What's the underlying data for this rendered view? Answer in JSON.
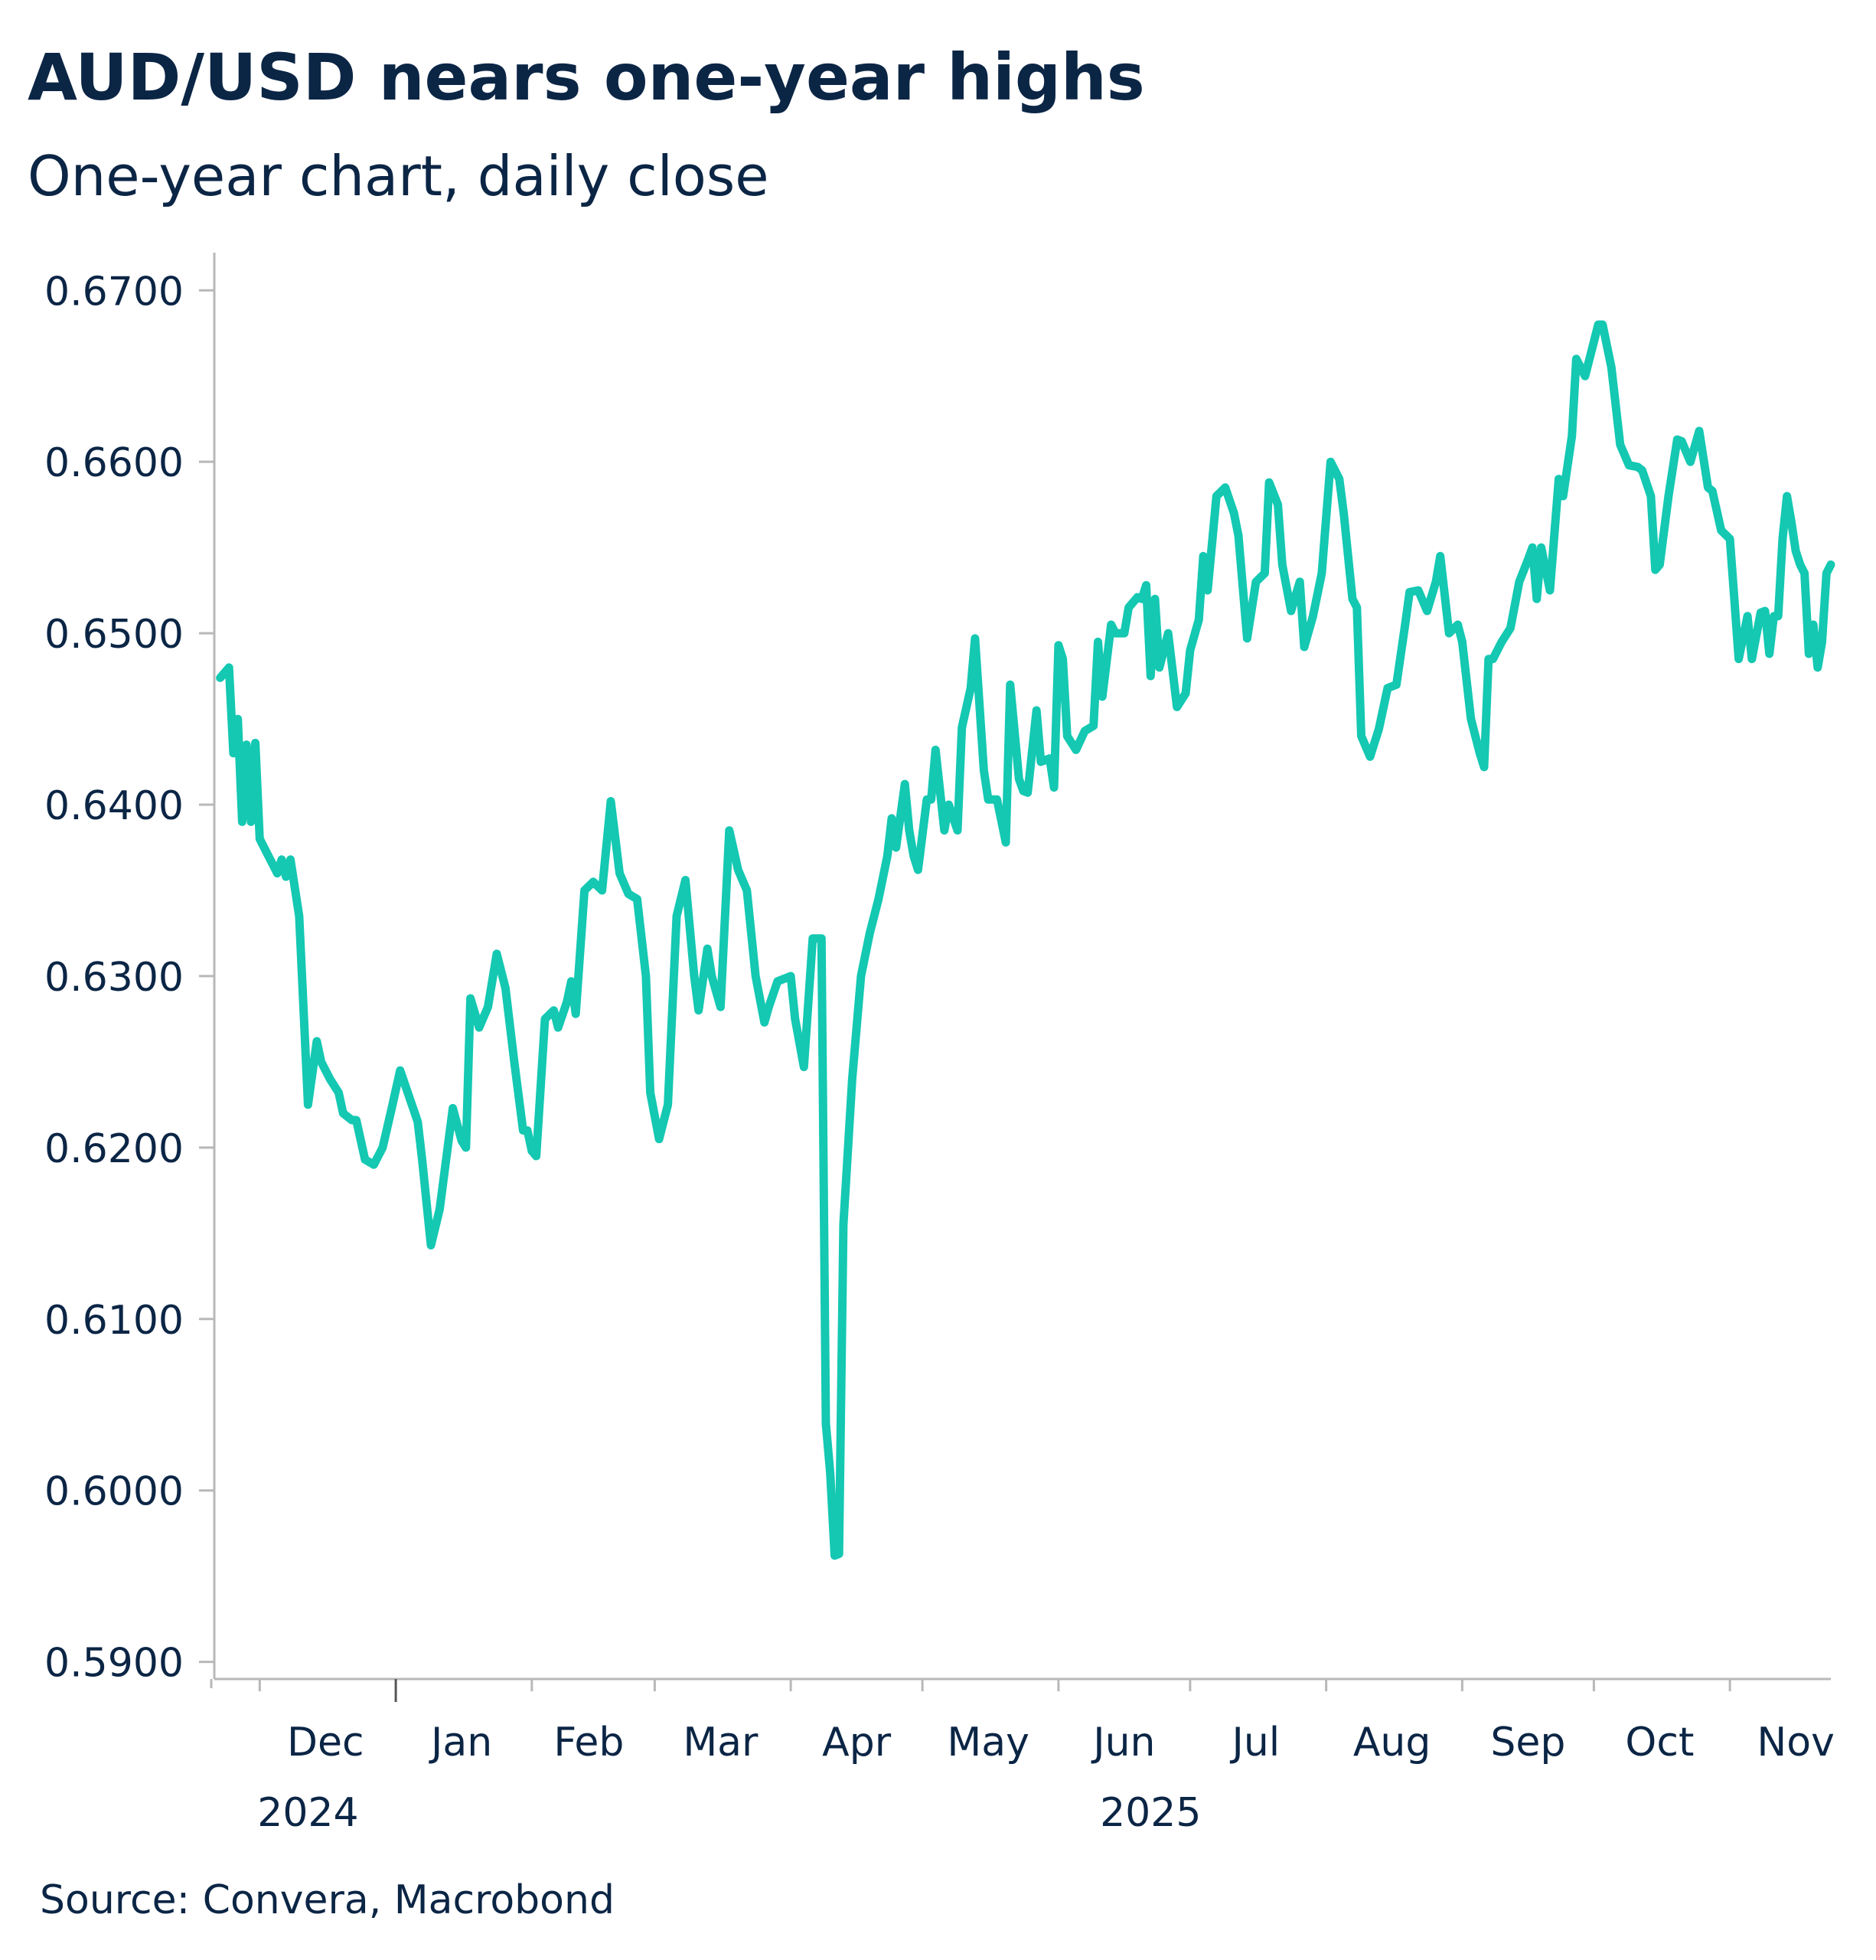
{
  "title": "AUD/USD nears one-year highs",
  "subtitle": "One-year chart, daily close",
  "source": "Source: Convera, Macrobond",
  "colors": {
    "line": "#14c8b2",
    "text": "#0b2545",
    "axis": "#b8b8b8"
  },
  "chart_data": {
    "type": "line",
    "title": "AUD/USD nears one-year highs",
    "subtitle": "One-year chart, daily close",
    "xlabel": "",
    "ylabel": "",
    "ylim": [
      0.589,
      0.6722
    ],
    "yticks": [
      "0.5900",
      "0.6000",
      "0.6100",
      "0.6200",
      "0.6300",
      "0.6400",
      "0.6500",
      "0.6600",
      "0.6700"
    ],
    "xlim": [
      "2024-11-21",
      "2025-11-24"
    ],
    "x_month_labels": [
      {
        "label": "Dec",
        "date": "2024-12-16"
      },
      {
        "label": "Jan",
        "date": "2025-01-16"
      },
      {
        "label": "Feb",
        "date": "2025-02-14"
      },
      {
        "label": "Mar",
        "date": "2025-03-16"
      },
      {
        "label": "Apr",
        "date": "2025-04-16"
      },
      {
        "label": "May",
        "date": "2025-05-16"
      },
      {
        "label": "Jun",
        "date": "2025-06-16"
      },
      {
        "label": "Jul",
        "date": "2025-07-16"
      },
      {
        "label": "Aug",
        "date": "2025-08-16"
      },
      {
        "label": "Sep",
        "date": "2025-09-16"
      },
      {
        "label": "Oct",
        "date": "2025-10-16"
      },
      {
        "label": "Nov",
        "date": "2025-11-16"
      }
    ],
    "x_month_ticks": [
      "2024-12-01",
      "2025-01-01",
      "2025-02-01",
      "2025-03-01",
      "2025-04-01",
      "2025-05-01",
      "2025-06-01",
      "2025-07-01",
      "2025-08-01",
      "2025-09-01",
      "2025-10-01",
      "2025-11-01"
    ],
    "x_year_labels": [
      {
        "label": "2024",
        "date": "2024-12-12"
      },
      {
        "label": "2025",
        "date": "2025-06-22"
      }
    ],
    "grid": false,
    "series": [
      {
        "values": [
          [
            "2024-11-22",
            0.6474
          ],
          [
            "2024-11-24",
            0.648
          ],
          [
            "2024-11-25",
            0.643
          ],
          [
            "2024-11-26",
            0.645
          ],
          [
            "2024-11-27",
            0.639
          ],
          [
            "2024-11-28",
            0.6435
          ],
          [
            "2024-11-29",
            0.639
          ],
          [
            "2024-11-30",
            0.6436
          ],
          [
            "2024-12-01",
            0.638
          ],
          [
            "2024-12-03",
            0.637
          ],
          [
            "2024-12-05",
            0.636
          ],
          [
            "2024-12-06",
            0.6368
          ],
          [
            "2024-12-07",
            0.6358
          ],
          [
            "2024-12-08",
            0.6368
          ],
          [
            "2024-12-10",
            0.6335
          ],
          [
            "2024-12-12",
            0.6225
          ],
          [
            "2024-12-14",
            0.6262
          ],
          [
            "2024-12-15",
            0.625
          ],
          [
            "2024-12-17",
            0.624
          ],
          [
            "2024-12-19",
            0.6232
          ],
          [
            "2024-12-20",
            0.622
          ],
          [
            "2024-12-22",
            0.6216
          ],
          [
            "2024-12-23",
            0.6216
          ],
          [
            "2024-12-25",
            0.6193
          ],
          [
            "2024-12-27",
            0.619
          ],
          [
            "2024-12-29",
            0.62
          ],
          [
            "2024-12-31",
            0.6222
          ],
          [
            "2025-01-02",
            0.6245
          ],
          [
            "2025-01-04",
            0.623
          ],
          [
            "2025-01-06",
            0.6215
          ],
          [
            "2025-01-07",
            0.6193
          ],
          [
            "2025-01-09",
            0.6143
          ],
          [
            "2025-01-11",
            0.6164
          ],
          [
            "2025-01-14",
            0.6223
          ],
          [
            "2025-01-16",
            0.6204
          ],
          [
            "2025-01-17",
            0.62
          ],
          [
            "2025-01-18",
            0.6287
          ],
          [
            "2025-01-20",
            0.627
          ],
          [
            "2025-01-22",
            0.6282
          ],
          [
            "2025-01-24",
            0.6313
          ],
          [
            "2025-01-26",
            0.6293
          ],
          [
            "2025-01-28",
            0.625
          ],
          [
            "2025-01-30",
            0.621
          ],
          [
            "2025-01-31",
            0.621
          ],
          [
            "2025-02-01",
            0.6198
          ],
          [
            "2025-02-02",
            0.6195
          ],
          [
            "2025-02-04",
            0.6275
          ],
          [
            "2025-02-06",
            0.628
          ],
          [
            "2025-02-07",
            0.627
          ],
          [
            "2025-02-09",
            0.6285
          ],
          [
            "2025-02-10",
            0.6297
          ],
          [
            "2025-02-11",
            0.6278
          ],
          [
            "2025-02-13",
            0.635
          ],
          [
            "2025-02-15",
            0.6355
          ],
          [
            "2025-02-17",
            0.635
          ],
          [
            "2025-02-19",
            0.6402
          ],
          [
            "2025-02-21",
            0.636
          ],
          [
            "2025-02-23",
            0.6348
          ],
          [
            "2025-02-25",
            0.6345
          ],
          [
            "2025-02-27",
            0.63
          ],
          [
            "2025-02-28",
            0.6232
          ],
          [
            "2025-03-02",
            0.6205
          ],
          [
            "2025-03-04",
            0.6225
          ],
          [
            "2025-03-06",
            0.6335
          ],
          [
            "2025-03-08",
            0.6356
          ],
          [
            "2025-03-10",
            0.63
          ],
          [
            "2025-03-11",
            0.628
          ],
          [
            "2025-03-13",
            0.6316
          ],
          [
            "2025-03-14",
            0.63
          ],
          [
            "2025-03-16",
            0.6282
          ],
          [
            "2025-03-18",
            0.6385
          ],
          [
            "2025-03-20",
            0.6362
          ],
          [
            "2025-03-22",
            0.635
          ],
          [
            "2025-03-24",
            0.63
          ],
          [
            "2025-03-26",
            0.6273
          ],
          [
            "2025-03-27",
            0.6282
          ],
          [
            "2025-03-29",
            0.6297
          ],
          [
            "2025-03-31",
            0.6299
          ],
          [
            "2025-04-01",
            0.63
          ],
          [
            "2025-04-02",
            0.6275
          ],
          [
            "2025-04-04",
            0.6247
          ],
          [
            "2025-04-06",
            0.6322
          ],
          [
            "2025-04-08",
            0.6322
          ],
          [
            "2025-04-09",
            0.6039
          ],
          [
            "2025-04-10",
            0.601
          ],
          [
            "2025-04-11",
            0.5962
          ],
          [
            "2025-04-12",
            0.5963
          ],
          [
            "2025-04-13",
            0.6155
          ],
          [
            "2025-04-15",
            0.624
          ],
          [
            "2025-04-17",
            0.63
          ],
          [
            "2025-04-19",
            0.6325
          ],
          [
            "2025-04-21",
            0.6345
          ],
          [
            "2025-04-23",
            0.637
          ],
          [
            "2025-04-24",
            0.6392
          ],
          [
            "2025-04-25",
            0.6375
          ],
          [
            "2025-04-27",
            0.6412
          ],
          [
            "2025-04-28",
            0.6385
          ],
          [
            "2025-04-29",
            0.637
          ],
          [
            "2025-04-30",
            0.6362
          ],
          [
            "2025-05-02",
            0.6403
          ],
          [
            "2025-05-03",
            0.6403
          ],
          [
            "2025-05-04",
            0.6432
          ],
          [
            "2025-05-06",
            0.6385
          ],
          [
            "2025-05-07",
            0.64
          ],
          [
            "2025-05-09",
            0.6385
          ],
          [
            "2025-05-10",
            0.6445
          ],
          [
            "2025-05-12",
            0.6468
          ],
          [
            "2025-05-13",
            0.6497
          ],
          [
            "2025-05-15",
            0.642
          ],
          [
            "2025-05-16",
            0.6403
          ],
          [
            "2025-05-18",
            0.6403
          ],
          [
            "2025-05-20",
            0.6378
          ],
          [
            "2025-05-21",
            0.647
          ],
          [
            "2025-05-23",
            0.6415
          ],
          [
            "2025-05-24",
            0.6408
          ],
          [
            "2025-05-25",
            0.6407
          ],
          [
            "2025-05-27",
            0.6455
          ],
          [
            "2025-05-28",
            0.6425
          ],
          [
            "2025-05-30",
            0.6427
          ],
          [
            "2025-05-31",
            0.641
          ],
          [
            "2025-06-01",
            0.6493
          ],
          [
            "2025-06-02",
            0.6485
          ],
          [
            "2025-06-03",
            0.644
          ],
          [
            "2025-06-05",
            0.6432
          ],
          [
            "2025-06-07",
            0.6443
          ],
          [
            "2025-06-09",
            0.6446
          ],
          [
            "2025-06-10",
            0.6495
          ],
          [
            "2025-06-11",
            0.6463
          ],
          [
            "2025-06-13",
            0.6505
          ],
          [
            "2025-06-14",
            0.65
          ],
          [
            "2025-06-16",
            0.65
          ],
          [
            "2025-06-17",
            0.6515
          ],
          [
            "2025-06-19",
            0.6521
          ],
          [
            "2025-06-20",
            0.652
          ],
          [
            "2025-06-21",
            0.6528
          ],
          [
            "2025-06-22",
            0.6475
          ],
          [
            "2025-06-23",
            0.652
          ],
          [
            "2025-06-24",
            0.648
          ],
          [
            "2025-06-26",
            0.65
          ],
          [
            "2025-06-28",
            0.6457
          ],
          [
            "2025-06-30",
            0.6465
          ],
          [
            "2025-07-01",
            0.649
          ],
          [
            "2025-07-03",
            0.6508
          ],
          [
            "2025-07-04",
            0.6545
          ],
          [
            "2025-07-05",
            0.6525
          ],
          [
            "2025-07-07",
            0.658
          ],
          [
            "2025-07-09",
            0.6585
          ],
          [
            "2025-07-11",
            0.657
          ],
          [
            "2025-07-12",
            0.6557
          ],
          [
            "2025-07-14",
            0.6497
          ],
          [
            "2025-07-16",
            0.653
          ],
          [
            "2025-07-18",
            0.6535
          ],
          [
            "2025-07-19",
            0.6588
          ],
          [
            "2025-07-21",
            0.6575
          ],
          [
            "2025-07-22",
            0.654
          ],
          [
            "2025-07-24",
            0.6513
          ],
          [
            "2025-07-26",
            0.653
          ],
          [
            "2025-07-27",
            0.6492
          ],
          [
            "2025-07-29",
            0.651
          ],
          [
            "2025-07-31",
            0.6535
          ],
          [
            "2025-08-02",
            0.66
          ],
          [
            "2025-08-04",
            0.659
          ],
          [
            "2025-08-05",
            0.657
          ],
          [
            "2025-08-07",
            0.652
          ],
          [
            "2025-08-08",
            0.6515
          ],
          [
            "2025-08-09",
            0.644
          ],
          [
            "2025-08-11",
            0.6428
          ],
          [
            "2025-08-13",
            0.6444
          ],
          [
            "2025-08-15",
            0.6468
          ],
          [
            "2025-08-17",
            0.647
          ],
          [
            "2025-08-19",
            0.6505
          ],
          [
            "2025-08-20",
            0.6524
          ],
          [
            "2025-08-22",
            0.6525
          ],
          [
            "2025-08-24",
            0.6513
          ],
          [
            "2025-08-26",
            0.653
          ],
          [
            "2025-08-27",
            0.6545
          ],
          [
            "2025-08-29",
            0.65
          ],
          [
            "2025-08-31",
            0.6505
          ],
          [
            "2025-09-01",
            0.6495
          ],
          [
            "2025-09-03",
            0.645
          ],
          [
            "2025-09-05",
            0.643
          ],
          [
            "2025-09-06",
            0.6422
          ],
          [
            "2025-09-07",
            0.6485
          ],
          [
            "2025-09-08",
            0.6485
          ],
          [
            "2025-09-10",
            0.6495
          ],
          [
            "2025-09-12",
            0.6503
          ],
          [
            "2025-09-14",
            0.653
          ],
          [
            "2025-09-16",
            0.6543
          ],
          [
            "2025-09-17",
            0.655
          ],
          [
            "2025-09-18",
            0.652
          ],
          [
            "2025-09-19",
            0.655
          ],
          [
            "2025-09-21",
            0.6525
          ],
          [
            "2025-09-23",
            0.659
          ],
          [
            "2025-09-24",
            0.658
          ],
          [
            "2025-09-26",
            0.6615
          ],
          [
            "2025-09-27",
            0.666
          ],
          [
            "2025-09-29",
            0.665
          ],
          [
            "2025-10-01",
            0.667
          ],
          [
            "2025-10-02",
            0.668
          ],
          [
            "2025-10-03",
            0.668
          ],
          [
            "2025-10-05",
            0.6655
          ],
          [
            "2025-10-07",
            0.661
          ],
          [
            "2025-10-09",
            0.6598
          ],
          [
            "2025-10-11",
            0.6597
          ],
          [
            "2025-10-12",
            0.6595
          ],
          [
            "2025-10-14",
            0.658
          ],
          [
            "2025-10-15",
            0.6537
          ],
          [
            "2025-10-16",
            0.654
          ],
          [
            "2025-10-18",
            0.658
          ],
          [
            "2025-10-20",
            0.6613
          ],
          [
            "2025-10-21",
            0.6612
          ],
          [
            "2025-10-23",
            0.66
          ],
          [
            "2025-10-25",
            0.6618
          ],
          [
            "2025-10-27",
            0.6585
          ],
          [
            "2025-10-28",
            0.6583
          ],
          [
            "2025-10-30",
            0.656
          ],
          [
            "2025-11-01",
            0.6555
          ],
          [
            "2025-11-02",
            0.652
          ],
          [
            "2025-11-03",
            0.6485
          ],
          [
            "2025-11-05",
            0.651
          ],
          [
            "2025-11-06",
            0.6485
          ],
          [
            "2025-11-08",
            0.6512
          ],
          [
            "2025-11-09",
            0.6513
          ],
          [
            "2025-11-10",
            0.6488
          ],
          [
            "2025-11-11",
            0.651
          ],
          [
            "2025-11-12",
            0.651
          ],
          [
            "2025-11-13",
            0.6555
          ],
          [
            "2025-11-14",
            0.658
          ],
          [
            "2025-11-15",
            0.6565
          ],
          [
            "2025-11-16",
            0.6548
          ],
          [
            "2025-11-17",
            0.654
          ],
          [
            "2025-11-18",
            0.6535
          ],
          [
            "2025-11-19",
            0.6488
          ],
          [
            "2025-11-20",
            0.6505
          ],
          [
            "2025-11-21",
            0.648
          ],
          [
            "2025-11-22",
            0.6495
          ],
          [
            "2025-11-23",
            0.6535
          ],
          [
            "2025-11-24",
            0.654
          ]
        ]
      }
    ]
  }
}
